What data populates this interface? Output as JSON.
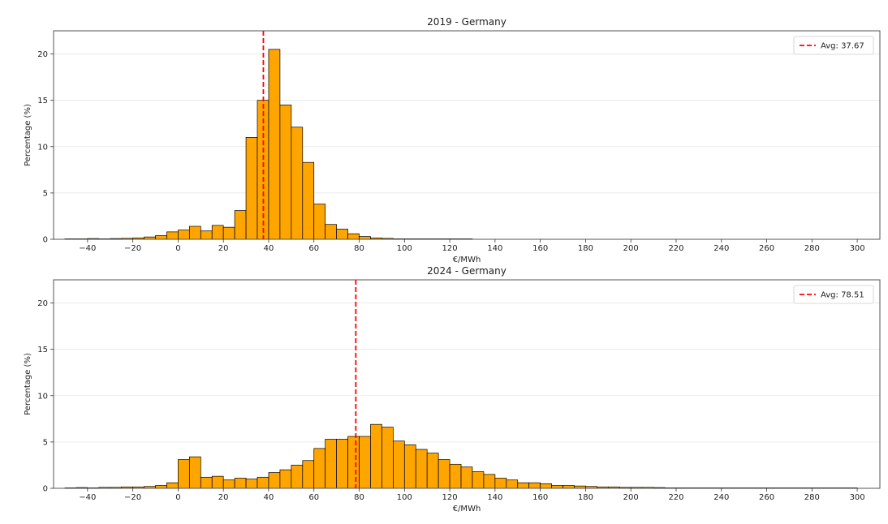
{
  "chart_data": [
    {
      "type": "bar",
      "title": "2019 - Germany",
      "xlabel": "€/MWh",
      "ylabel": "Percentage (%)",
      "xlim": [
        -55,
        310
      ],
      "ylim": [
        0,
        22.5
      ],
      "bin_width": 5,
      "bin_start": -50,
      "values": [
        0.05,
        0.05,
        0.08,
        0.05,
        0.08,
        0.1,
        0.15,
        0.25,
        0.4,
        0.8,
        1.0,
        1.4,
        0.9,
        1.5,
        1.3,
        3.1,
        11.0,
        15.0,
        20.5,
        14.5,
        12.1,
        8.3,
        3.8,
        1.6,
        1.1,
        0.6,
        0.3,
        0.15,
        0.1,
        0.05,
        0.05,
        0.03,
        0.03,
        0.02,
        0.02,
        0.02
      ],
      "avg_line": {
        "x": 37.67,
        "label": "Avg: 37.67"
      },
      "xticks": [
        -40,
        -20,
        0,
        20,
        40,
        60,
        80,
        100,
        120,
        140,
        160,
        180,
        200,
        220,
        240,
        260,
        280,
        300
      ],
      "yticks": [
        0,
        5,
        10,
        15,
        20
      ],
      "grid": true,
      "legend": "top-right",
      "bar_color": "#ffa500",
      "avg_color": "#ff0000"
    },
    {
      "type": "bar",
      "title": "2024 - Germany",
      "xlabel": "€/MWh",
      "ylabel": "Percentage (%)",
      "xlim": [
        -55,
        310
      ],
      "ylim": [
        0,
        22.5
      ],
      "bin_width": 5,
      "bin_start": -50,
      "values": [
        0.05,
        0.08,
        0.05,
        0.1,
        0.1,
        0.15,
        0.15,
        0.2,
        0.3,
        0.6,
        3.1,
        3.4,
        1.2,
        1.3,
        0.9,
        1.1,
        1.0,
        1.2,
        1.7,
        2.0,
        2.5,
        3.0,
        4.3,
        5.3,
        5.3,
        5.6,
        5.6,
        6.9,
        6.6,
        5.1,
        4.7,
        4.2,
        3.8,
        3.1,
        2.6,
        2.3,
        1.8,
        1.5,
        1.1,
        0.9,
        0.6,
        0.6,
        0.5,
        0.3,
        0.3,
        0.25,
        0.2,
        0.15,
        0.15,
        0.1,
        0.1,
        0.1,
        0.08,
        0.05,
        0.05,
        0.05,
        0.05,
        0.05,
        0.03,
        0.03,
        0.03,
        0.03,
        0.03,
        0.03,
        0.03,
        0.03,
        0.03,
        0.03,
        0.03,
        0.03
      ],
      "avg_line": {
        "x": 78.51,
        "label": "Avg: 78.51"
      },
      "xticks": [
        -40,
        -20,
        0,
        20,
        40,
        60,
        80,
        100,
        120,
        140,
        160,
        180,
        200,
        220,
        240,
        260,
        280,
        300
      ],
      "yticks": [
        0,
        5,
        10,
        15,
        20
      ],
      "grid": true,
      "legend": "top-right",
      "bar_color": "#ffa500",
      "avg_color": "#ff0000"
    }
  ]
}
